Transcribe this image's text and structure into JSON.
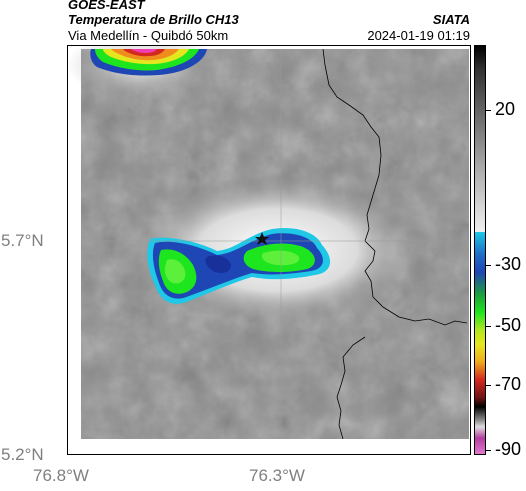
{
  "header": {
    "title_satellite": "GOES-EAST",
    "title_product": "Temperatura de Brillo CH13",
    "title_route": "Via Medellín - Quibdó 50km",
    "org": "SIATA",
    "timestamp": "2024-01-19 01:19"
  },
  "map": {
    "y_tick_labels": [
      "5.7°N",
      "5.2°N"
    ],
    "x_tick_labels": [
      "76.8°W",
      "76.3°W"
    ],
    "grid": true
  },
  "colorbar": {
    "tick_labels": [
      "20",
      "-30",
      "-50",
      "-70",
      "-90"
    ],
    "colors": {
      "warm_top": "#111111",
      "grey_light": "#e8e8e8",
      "cyan": "#1ec8e6",
      "blue": "#1e46b4",
      "green": "#1ee61e",
      "yellow": "#e6e61e",
      "red": "#d2281e",
      "black": "#000000",
      "magenta": "#b43ca0"
    }
  },
  "markers": [
    {
      "name": "location-marker",
      "label": ""
    }
  ]
}
